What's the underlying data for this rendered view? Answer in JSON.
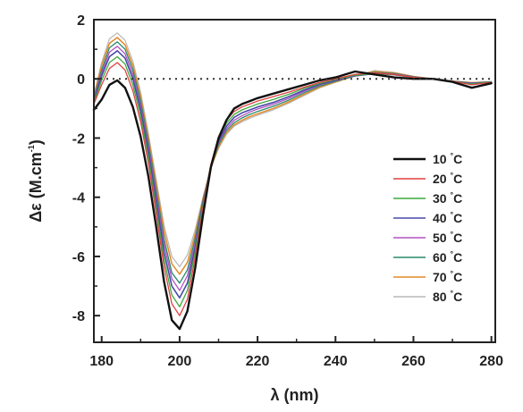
{
  "chart_data": {
    "type": "line",
    "title": "",
    "xlabel": "λ (nm)",
    "ylabel_main": "Δε (M.cm",
    "ylabel_sup": "-1",
    "ylabel_close": ")",
    "xlim": [
      178,
      281
    ],
    "ylim": [
      -8.9,
      2
    ],
    "xticks": [
      180,
      200,
      220,
      240,
      260,
      280
    ],
    "yticks": [
      2,
      0,
      -2,
      -4,
      -6,
      -8
    ],
    "grid": false,
    "zero_line": "dotted",
    "legend_position": "right-middle",
    "series": [
      {
        "name": "10",
        "unit": "°C",
        "color": "#111111",
        "width": 2.4,
        "x": [
          178,
          180,
          182,
          184,
          186,
          188,
          190,
          192,
          194,
          196,
          198,
          200,
          202,
          204,
          206,
          208,
          210,
          212,
          214,
          216,
          218,
          220,
          224,
          228,
          232,
          236,
          240,
          245,
          250,
          255,
          260,
          265,
          270,
          275,
          280
        ],
        "y": [
          -1.05,
          -0.7,
          -0.2,
          -0.05,
          -0.3,
          -0.95,
          -1.95,
          -3.3,
          -5.0,
          -6.85,
          -8.15,
          -8.45,
          -7.85,
          -6.4,
          -4.6,
          -3.0,
          -2.0,
          -1.4,
          -1.0,
          -0.85,
          -0.75,
          -0.65,
          -0.5,
          -0.35,
          -0.2,
          -0.05,
          0.05,
          0.25,
          0.15,
          0.05,
          0.0,
          0.0,
          -0.1,
          -0.3,
          -0.15
        ]
      },
      {
        "name": "20",
        "unit": "°C",
        "color": "#e04040",
        "width": 1.3,
        "x": [
          178,
          180,
          182,
          184,
          186,
          188,
          190,
          192,
          194,
          196,
          198,
          200,
          202,
          204,
          206,
          208,
          210,
          212,
          214,
          216,
          218,
          220,
          224,
          228,
          232,
          236,
          240,
          245,
          250,
          255,
          260,
          265,
          270,
          275,
          280
        ],
        "y": [
          -0.85,
          -0.2,
          0.35,
          0.55,
          0.3,
          -0.4,
          -1.45,
          -2.85,
          -4.55,
          -6.35,
          -7.6,
          -8.0,
          -7.45,
          -6.05,
          -4.35,
          -2.9,
          -1.95,
          -1.4,
          -1.1,
          -0.95,
          -0.85,
          -0.75,
          -0.6,
          -0.45,
          -0.28,
          -0.12,
          0.0,
          0.15,
          0.2,
          0.15,
          0.05,
          0.0,
          -0.08,
          -0.2,
          -0.12
        ]
      },
      {
        "name": "30",
        "unit": "°C",
        "color": "#3caa3c",
        "width": 1.3,
        "x": [
          178,
          180,
          182,
          184,
          186,
          188,
          190,
          192,
          194,
          196,
          198,
          200,
          202,
          204,
          206,
          208,
          210,
          212,
          214,
          216,
          218,
          220,
          224,
          228,
          232,
          236,
          240,
          245,
          250,
          255,
          260,
          265,
          270,
          275,
          280
        ],
        "y": [
          -0.8,
          -0.05,
          0.55,
          0.75,
          0.5,
          -0.2,
          -1.25,
          -2.65,
          -4.35,
          -6.1,
          -7.3,
          -7.7,
          -7.15,
          -5.85,
          -4.25,
          -2.9,
          -2.0,
          -1.5,
          -1.2,
          -1.05,
          -0.95,
          -0.85,
          -0.7,
          -0.52,
          -0.32,
          -0.15,
          -0.02,
          0.12,
          0.18,
          0.14,
          0.05,
          0.0,
          -0.08,
          -0.18,
          -0.1
        ]
      },
      {
        "name": "40",
        "unit": "°C",
        "color": "#4a4aa8",
        "width": 1.6,
        "x": [
          178,
          180,
          182,
          184,
          186,
          188,
          190,
          192,
          194,
          196,
          198,
          200,
          202,
          204,
          206,
          208,
          210,
          212,
          214,
          216,
          218,
          220,
          224,
          228,
          232,
          236,
          240,
          245,
          250,
          255,
          260,
          265,
          270,
          275,
          280
        ],
        "y": [
          -0.75,
          0.1,
          0.75,
          0.95,
          0.7,
          0.0,
          -1.05,
          -2.45,
          -4.1,
          -5.85,
          -7.0,
          -7.4,
          -6.9,
          -5.7,
          -4.2,
          -2.95,
          -2.1,
          -1.6,
          -1.3,
          -1.15,
          -1.05,
          -0.95,
          -0.8,
          -0.6,
          -0.38,
          -0.18,
          -0.05,
          0.1,
          0.18,
          0.14,
          0.05,
          0.0,
          -0.08,
          -0.16,
          -0.1
        ]
      },
      {
        "name": "50",
        "unit": "°C",
        "color": "#b050c0",
        "width": 1.3,
        "x": [
          178,
          180,
          182,
          184,
          186,
          188,
          190,
          192,
          194,
          196,
          198,
          200,
          202,
          204,
          206,
          208,
          210,
          212,
          214,
          216,
          218,
          220,
          224,
          228,
          232,
          236,
          240,
          245,
          250,
          255,
          260,
          265,
          270,
          275,
          280
        ],
        "y": [
          -0.7,
          0.2,
          0.9,
          1.1,
          0.85,
          0.15,
          -0.9,
          -2.3,
          -3.9,
          -5.6,
          -6.75,
          -7.15,
          -6.65,
          -5.55,
          -4.15,
          -2.95,
          -2.15,
          -1.68,
          -1.4,
          -1.25,
          -1.12,
          -1.02,
          -0.86,
          -0.66,
          -0.42,
          -0.2,
          -0.06,
          0.1,
          0.2,
          0.16,
          0.06,
          0.0,
          -0.08,
          -0.15,
          -0.1
        ]
      },
      {
        "name": "60",
        "unit": "°C",
        "color": "#2a8a6a",
        "width": 1.3,
        "x": [
          178,
          180,
          182,
          184,
          186,
          188,
          190,
          192,
          194,
          196,
          198,
          200,
          202,
          204,
          206,
          208,
          210,
          212,
          214,
          216,
          218,
          220,
          224,
          228,
          232,
          236,
          240,
          245,
          250,
          255,
          260,
          265,
          270,
          275,
          280
        ],
        "y": [
          -0.65,
          0.3,
          1.05,
          1.25,
          1.0,
          0.3,
          -0.75,
          -2.15,
          -3.75,
          -5.4,
          -6.55,
          -6.9,
          -6.45,
          -5.4,
          -4.1,
          -2.98,
          -2.22,
          -1.75,
          -1.48,
          -1.32,
          -1.2,
          -1.1,
          -0.93,
          -0.72,
          -0.47,
          -0.24,
          -0.08,
          0.1,
          0.22,
          0.18,
          0.07,
          0.0,
          -0.08,
          -0.14,
          -0.1
        ]
      },
      {
        "name": "70",
        "unit": "°C",
        "color": "#e08a28",
        "width": 1.5,
        "x": [
          178,
          180,
          182,
          184,
          186,
          188,
          190,
          192,
          194,
          196,
          198,
          200,
          202,
          204,
          206,
          208,
          210,
          212,
          214,
          216,
          218,
          220,
          224,
          228,
          232,
          236,
          240,
          245,
          250,
          255,
          260,
          265,
          270,
          275,
          280
        ],
        "y": [
          -0.6,
          0.45,
          1.2,
          1.4,
          1.15,
          0.45,
          -0.6,
          -2.0,
          -3.55,
          -5.15,
          -6.25,
          -6.6,
          -6.2,
          -5.25,
          -4.05,
          -3.0,
          -2.3,
          -1.82,
          -1.55,
          -1.4,
          -1.28,
          -1.18,
          -1.0,
          -0.78,
          -0.52,
          -0.28,
          -0.1,
          0.1,
          0.25,
          0.2,
          0.08,
          0.0,
          -0.08,
          -0.13,
          -0.1
        ]
      },
      {
        "name": "80",
        "unit": "°C",
        "color": "#b8b8b8",
        "width": 1.2,
        "x": [
          178,
          180,
          182,
          184,
          186,
          188,
          190,
          192,
          194,
          196,
          198,
          200,
          202,
          204,
          206,
          208,
          210,
          212,
          214,
          216,
          218,
          220,
          224,
          228,
          232,
          236,
          240,
          245,
          250,
          255,
          260,
          265,
          270,
          275,
          280
        ],
        "y": [
          -0.55,
          0.55,
          1.35,
          1.55,
          1.3,
          0.6,
          -0.45,
          -1.85,
          -3.4,
          -4.95,
          -6.0,
          -6.35,
          -5.95,
          -5.1,
          -4.0,
          -3.02,
          -2.35,
          -1.88,
          -1.6,
          -1.45,
          -1.33,
          -1.23,
          -1.05,
          -0.82,
          -0.56,
          -0.3,
          -0.12,
          0.1,
          0.28,
          0.22,
          0.09,
          0.0,
          -0.08,
          -0.12,
          -0.1
        ]
      }
    ]
  }
}
